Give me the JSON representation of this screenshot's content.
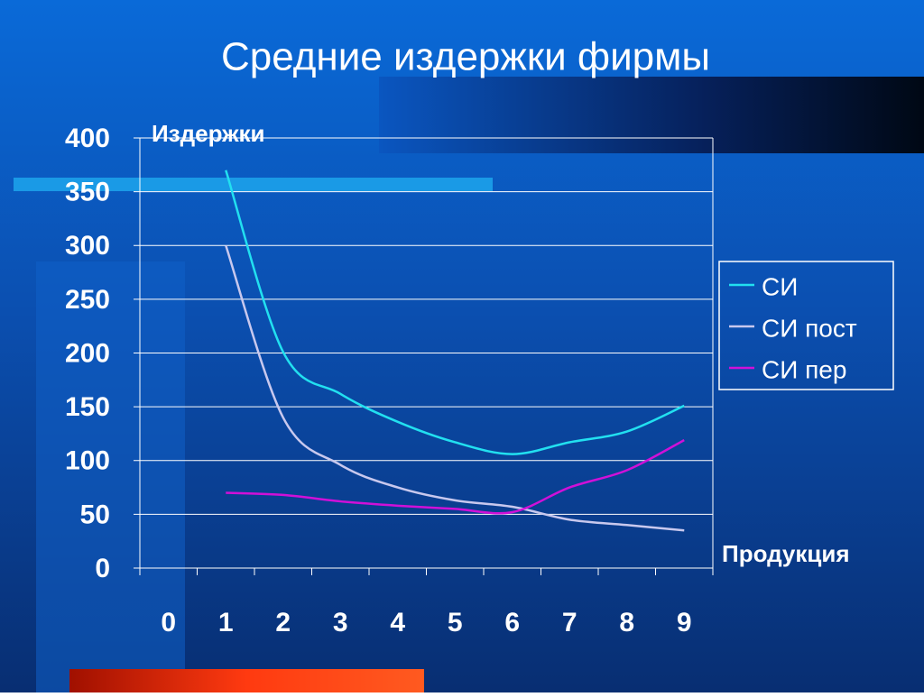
{
  "chart_data": {
    "type": "line",
    "title": "Средние издержки фирмы",
    "y_label": "Издержки",
    "x_label": "Продукция",
    "categories": [
      "0",
      "1",
      "2",
      "3",
      "4",
      "5",
      "6",
      "7",
      "8",
      "9"
    ],
    "series": [
      {
        "name": "СИ",
        "color": "#22e0f0",
        "values": [
          null,
          370,
          201,
          162,
          136,
          117,
          106,
          117,
          127,
          151
        ]
      },
      {
        "name": "СИ пост",
        "color": "#c8c8ee",
        "values": [
          null,
          300,
          140,
          96,
          75,
          63,
          57,
          45,
          40,
          35
        ]
      },
      {
        "name": "СИ пер",
        "color": "#d010d8",
        "values": [
          null,
          70,
          68,
          62,
          58,
          55,
          52,
          75,
          91,
          119
        ]
      }
    ],
    "ylim": [
      0,
      400
    ],
    "yticks": [
      0,
      50,
      100,
      150,
      200,
      250,
      300,
      350,
      400
    ],
    "grid": true,
    "legend": "right",
    "smooth": true
  }
}
